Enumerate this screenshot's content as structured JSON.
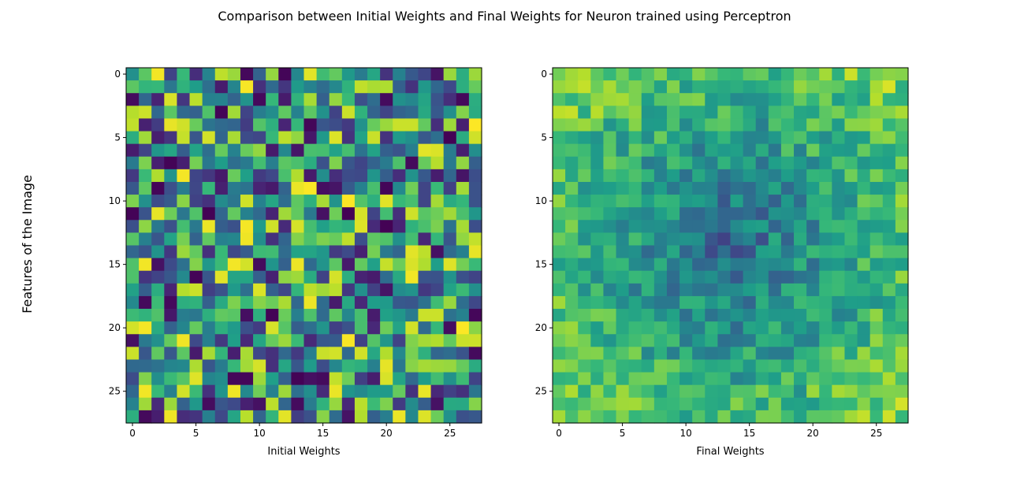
{
  "figure": {
    "suptitle": "Comparison between Initial Weights and Final Weights for Neuron trained using Perceptron",
    "ylabel": "Features of the Image"
  },
  "chart_data": [
    {
      "type": "heatmap",
      "xlabel": "Initial Weights",
      "rows": 28,
      "cols": 28,
      "xticks": [
        0,
        5,
        10,
        15,
        20,
        25
      ],
      "yticks": [
        0,
        5,
        10,
        15,
        20,
        25
      ],
      "xlim": [
        -0.5,
        27.5
      ],
      "ylim": [
        27.5,
        -0.5
      ],
      "colormap": "viridis",
      "value_range": [
        0,
        1
      ],
      "seed": 20240521
    },
    {
      "type": "heatmap",
      "xlabel": "Final Weights",
      "rows": 28,
      "cols": 28,
      "xticks": [
        0,
        5,
        10,
        15,
        20,
        25
      ],
      "yticks": [
        0,
        5,
        10,
        15,
        20,
        25
      ],
      "xlim": [
        -0.5,
        27.5
      ],
      "ylim": [
        27.5,
        -0.5
      ],
      "colormap": "viridis",
      "value_range": [
        0,
        1
      ],
      "seed": 777
    }
  ]
}
